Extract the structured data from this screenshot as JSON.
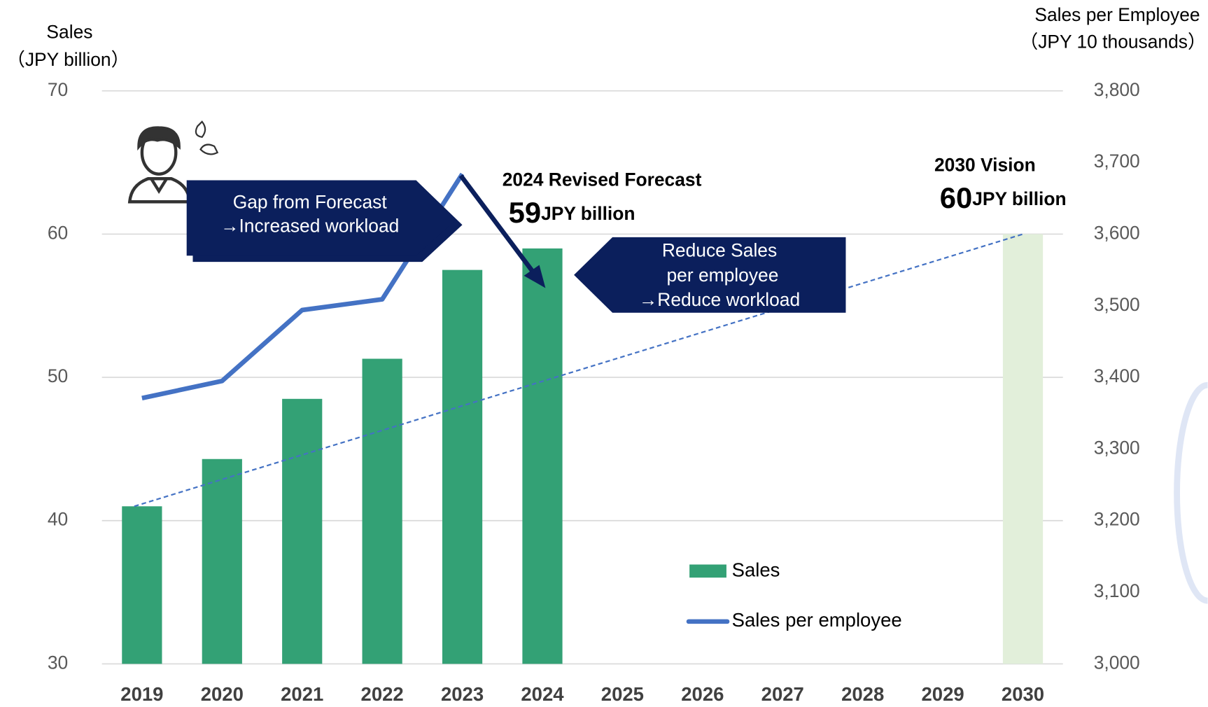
{
  "chart_data": {
    "type": "bar",
    "y_axis_label": [
      "Sales",
      "（JPY billion）"
    ],
    "y2_axis_label": [
      "Sales per Employee",
      "（JPY 10 thousands）"
    ],
    "categories": [
      "2019",
      "2020",
      "2021",
      "2022",
      "2023",
      "2024",
      "2025",
      "2026",
      "2027",
      "2028",
      "2029",
      "2030"
    ],
    "series": [
      {
        "name": "Sales",
        "type": "bar",
        "color": "#33a175",
        "bar_colors": [
          "#33a175",
          "#33a175",
          "#33a175",
          "#33a175",
          "#33a175",
          "#33a175",
          null,
          null,
          null,
          null,
          null,
          "#e2efda"
        ],
        "values": [
          41,
          44.3,
          48.5,
          51.3,
          57.5,
          59,
          null,
          null,
          null,
          null,
          null,
          60
        ]
      },
      {
        "name": "Sales per employee",
        "type": "line",
        "axis": "y2",
        "color": "#4472c4",
        "values": [
          3371,
          3395,
          3494,
          3509,
          3684,
          null,
          null,
          null,
          null,
          null,
          null,
          null
        ]
      }
    ],
    "trendline": true,
    "trendline_color": "#4472c4",
    "ylim": [
      30,
      70
    ],
    "yticks": [
      30,
      40,
      50,
      60,
      70
    ],
    "y2lim": [
      3000,
      3800
    ],
    "y2ticks": [
      {
        "value": 3000,
        "label": "3,000"
      },
      {
        "value": 3100,
        "label": "3,100"
      },
      {
        "value": 3200,
        "label": "3,200"
      },
      {
        "value": 3300,
        "label": "3,300"
      },
      {
        "value": 3400,
        "label": "3,400"
      },
      {
        "value": 3500,
        "label": "3,500"
      },
      {
        "value": 3600,
        "label": "3,600"
      },
      {
        "value": 3700,
        "label": "3,700"
      },
      {
        "value": 3800,
        "label": "3,800"
      }
    ],
    "grid": true,
    "annotations": {
      "gap": [
        "Gap from Forecast",
        "→Increased workload"
      ],
      "forecast": {
        "title": "2024 Revised Forecast",
        "value": "59",
        "unit": "JPY billion"
      },
      "reduce": [
        "Reduce Sales",
        "per employee",
        "→Reduce workload"
      ],
      "vision": {
        "title": "2030 Vision",
        "value": "60",
        "unit": "JPY billion"
      }
    }
  }
}
